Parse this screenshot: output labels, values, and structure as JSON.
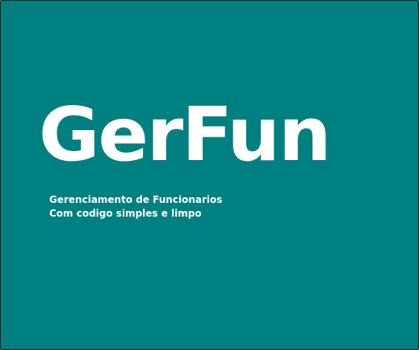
{
  "splash": {
    "title": "GerFun",
    "tagline_line1": "Gerenciamento de Funcionarios",
    "tagline_line2": "Com codigo simples e limpo"
  },
  "colors": {
    "background": "#008080",
    "text": "#ffffff",
    "border": "#1a1a1a"
  }
}
